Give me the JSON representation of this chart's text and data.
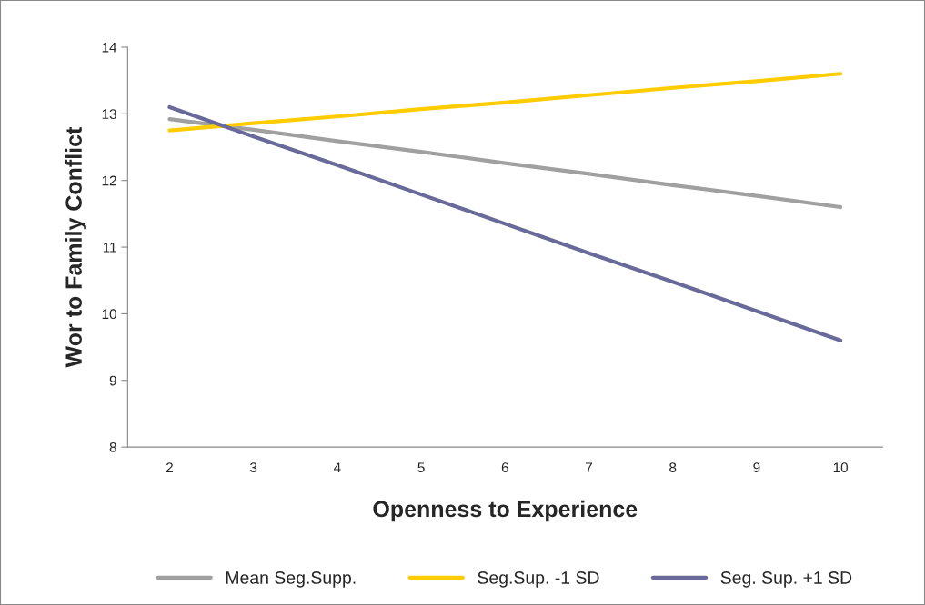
{
  "chart_data": {
    "type": "line",
    "xlabel": "Openness to Experience",
    "ylabel": "Wor to Family Conflict",
    "categories": [
      "2",
      "3",
      "4",
      "5",
      "6",
      "7",
      "8",
      "9",
      "10"
    ],
    "series": [
      {
        "name": "Mean Seg.Supp.",
        "color": "#a0a0a0",
        "values": [
          12.92,
          12.76,
          12.59,
          12.43,
          12.26,
          12.1,
          11.93,
          11.77,
          11.6
        ]
      },
      {
        "name": "Seg.Sup. -1 SD",
        "color": "#ffcc00",
        "values": [
          12.75,
          12.86,
          12.96,
          13.07,
          13.17,
          13.28,
          13.39,
          13.49,
          13.6
        ]
      },
      {
        "name": "Seg. Sup. +1 SD",
        "color": "#6a6a9a",
        "values": [
          13.1,
          12.66,
          12.23,
          11.79,
          11.35,
          10.91,
          10.48,
          10.04,
          9.6
        ]
      }
    ],
    "ylim": [
      8,
      14
    ],
    "yticks": [
      8,
      9,
      10,
      11,
      12,
      13,
      14
    ],
    "grid": false,
    "legend": "bottom",
    "marker": "none",
    "line_style": "solid"
  }
}
